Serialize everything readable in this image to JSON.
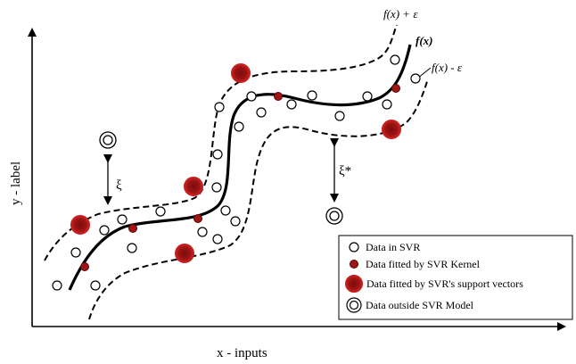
{
  "axes": {
    "x_label": "x - inputs",
    "y_label": "y - label"
  },
  "curves": {
    "upper_label": "f(x) + ε",
    "center_label": "f(x)",
    "lower_label": "f(x) - ε"
  },
  "slack": {
    "upper_symbol": "ξ",
    "lower_symbol": "ξ*"
  },
  "legend": {
    "items": [
      {
        "marker": "hollow-circle",
        "label": "Data in SVR"
      },
      {
        "marker": "small-red-dot",
        "label": "Data fitted by SVR Kernel"
      },
      {
        "marker": "large-red-dot",
        "label": "Data fitted by SVR's support vectors"
      },
      {
        "marker": "double-ring",
        "label": "Data outside SVR Model"
      }
    ]
  },
  "colors": {
    "support_vector_fill": "#8b1010",
    "support_vector_ring": "#c41e1e",
    "kernel_point_fill": "#a01515",
    "line": "#000000"
  }
}
